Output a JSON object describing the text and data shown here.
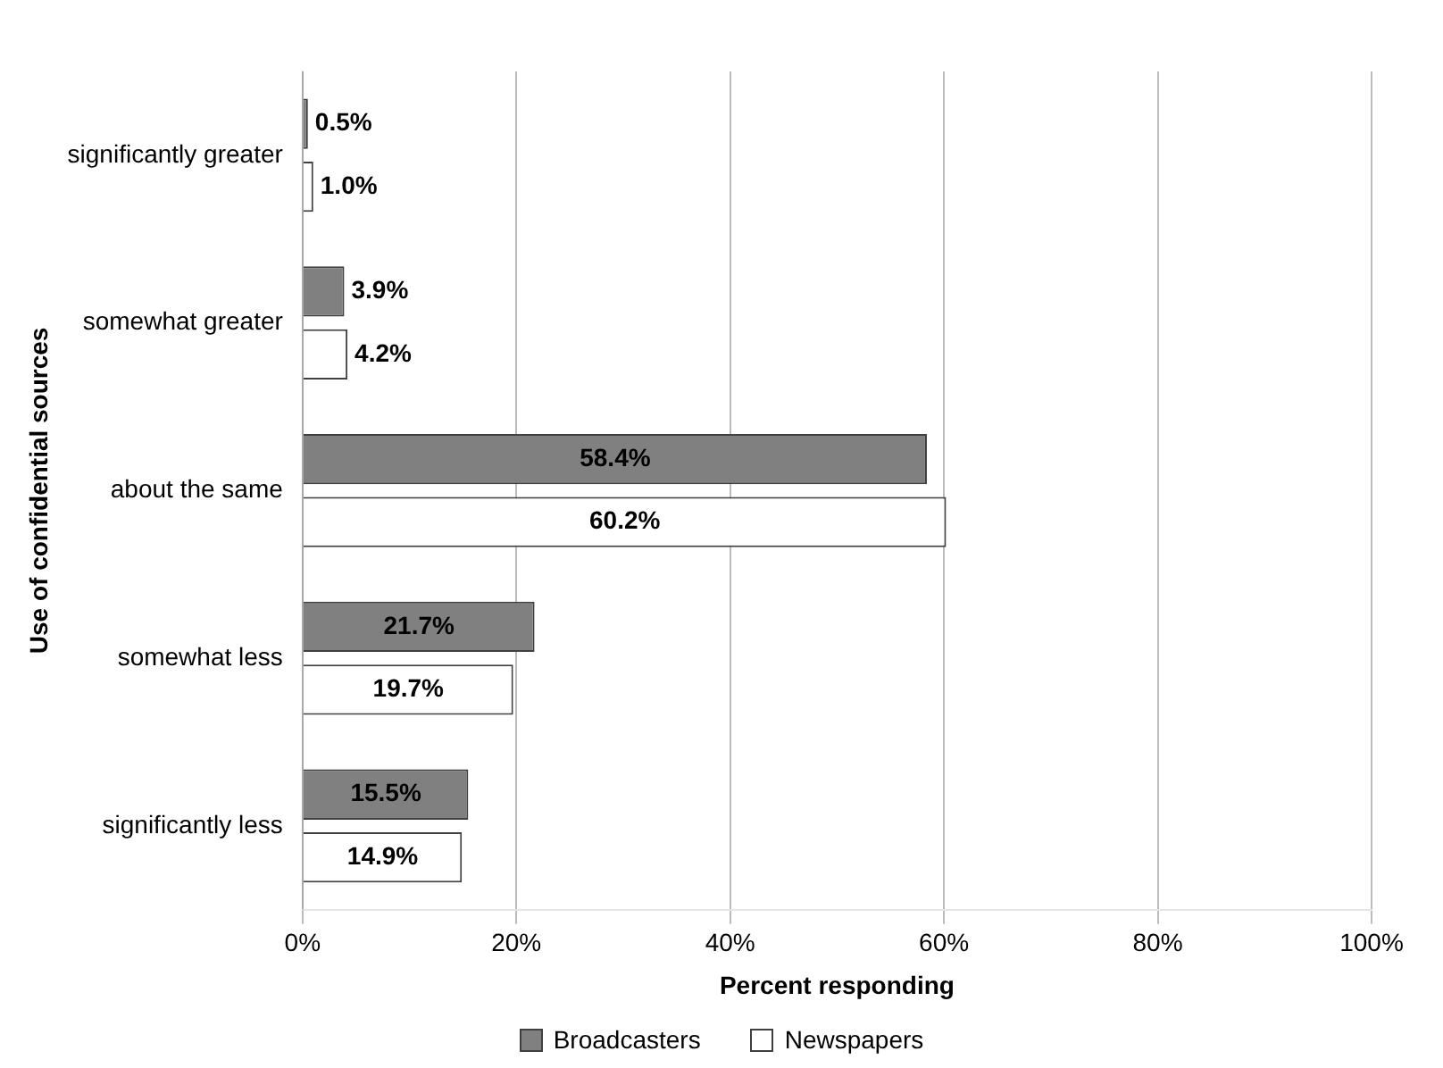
{
  "chart_data": {
    "type": "bar",
    "orientation": "horizontal",
    "ylabel": "Use of confidential sources",
    "xlabel": "Percent responding",
    "categories": [
      "significantly greater",
      "somewhat greater",
      "about the same",
      "somewhat less",
      "significantly less"
    ],
    "series": [
      {
        "name": "Broadcasters",
        "color": "#808080",
        "values": [
          0.5,
          3.9,
          58.4,
          21.7,
          15.5
        ],
        "value_labels": [
          "0.5%",
          "3.9%",
          "58.4%",
          "21.7%",
          "15.5%"
        ]
      },
      {
        "name": "Newspapers",
        "color": "#ffffff",
        "values": [
          1.0,
          4.2,
          60.2,
          19.7,
          14.9
        ],
        "value_labels": [
          "1.0%",
          "4.2%",
          "60.2%",
          "19.7%",
          "14.9%"
        ]
      }
    ],
    "xlim": [
      0,
      100
    ],
    "xticks": [
      {
        "value": 0,
        "label": "0%"
      },
      {
        "value": 20,
        "label": "20%"
      },
      {
        "value": 40,
        "label": "40%"
      },
      {
        "value": 60,
        "label": "60%"
      },
      {
        "value": 80,
        "label": "80%"
      },
      {
        "value": 100,
        "label": "100%"
      }
    ],
    "grid": "x",
    "legend": "bottom"
  }
}
